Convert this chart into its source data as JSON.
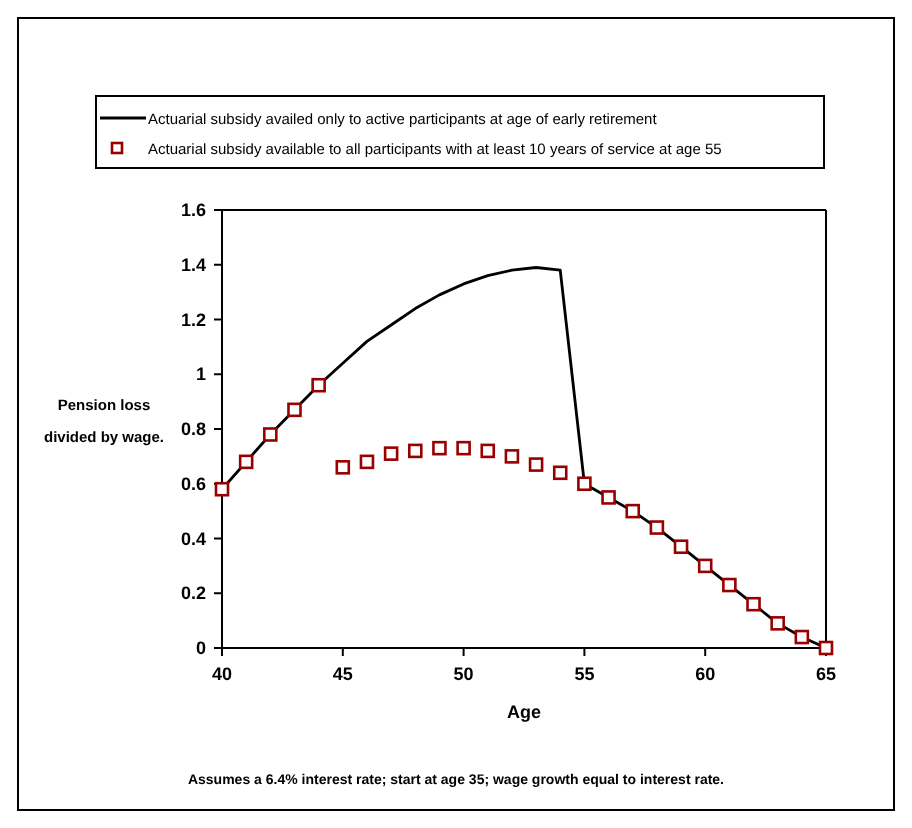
{
  "chart_data": {
    "type": "line",
    "xlabel": "Age",
    "ylabel": "Pension loss divided by wage.",
    "x": [
      40,
      41,
      42,
      43,
      44,
      45,
      46,
      47,
      48,
      49,
      50,
      51,
      52,
      53,
      54,
      55,
      56,
      57,
      58,
      59,
      60,
      61,
      62,
      63,
      64,
      65
    ],
    "series": [
      {
        "name": "Actuarial subsidy availed only to active participants at age of  early retirement",
        "color": "#000000",
        "marker": "none",
        "values": [
          0.58,
          0.68,
          0.78,
          0.87,
          0.96,
          1.04,
          1.12,
          1.18,
          1.24,
          1.29,
          1.33,
          1.36,
          1.38,
          1.39,
          1.38,
          0.6,
          0.55,
          0.5,
          0.44,
          0.37,
          0.3,
          0.23,
          0.16,
          0.09,
          0.04,
          0
        ]
      },
      {
        "name": "Actuarial subsidy available to all participants with at least 10 years of  service at age 55",
        "color": "#990000",
        "type": "scatter",
        "marker": "square",
        "values": [
          0.58,
          0.68,
          0.78,
          0.87,
          0.96,
          0.66,
          0.68,
          0.71,
          0.72,
          0.73,
          0.73,
          0.72,
          0.7,
          0.67,
          0.64,
          0.6,
          0.55,
          0.5,
          0.44,
          0.37,
          0.3,
          0.23,
          0.16,
          0.09,
          0.04,
          0
        ]
      }
    ],
    "xlim": [
      40,
      65
    ],
    "xticks": [
      40,
      45,
      50,
      55,
      60,
      65
    ],
    "ylim": [
      0,
      1.6
    ],
    "yticks": [
      0,
      0.2,
      0.4,
      0.6,
      0.8,
      1,
      1.2,
      1.4,
      1.6
    ],
    "grid": false,
    "legend": "top",
    "annotations": [
      "Assumes a 6.4% interest rate; start at age 35; wage growth equal to interest rate."
    ]
  }
}
